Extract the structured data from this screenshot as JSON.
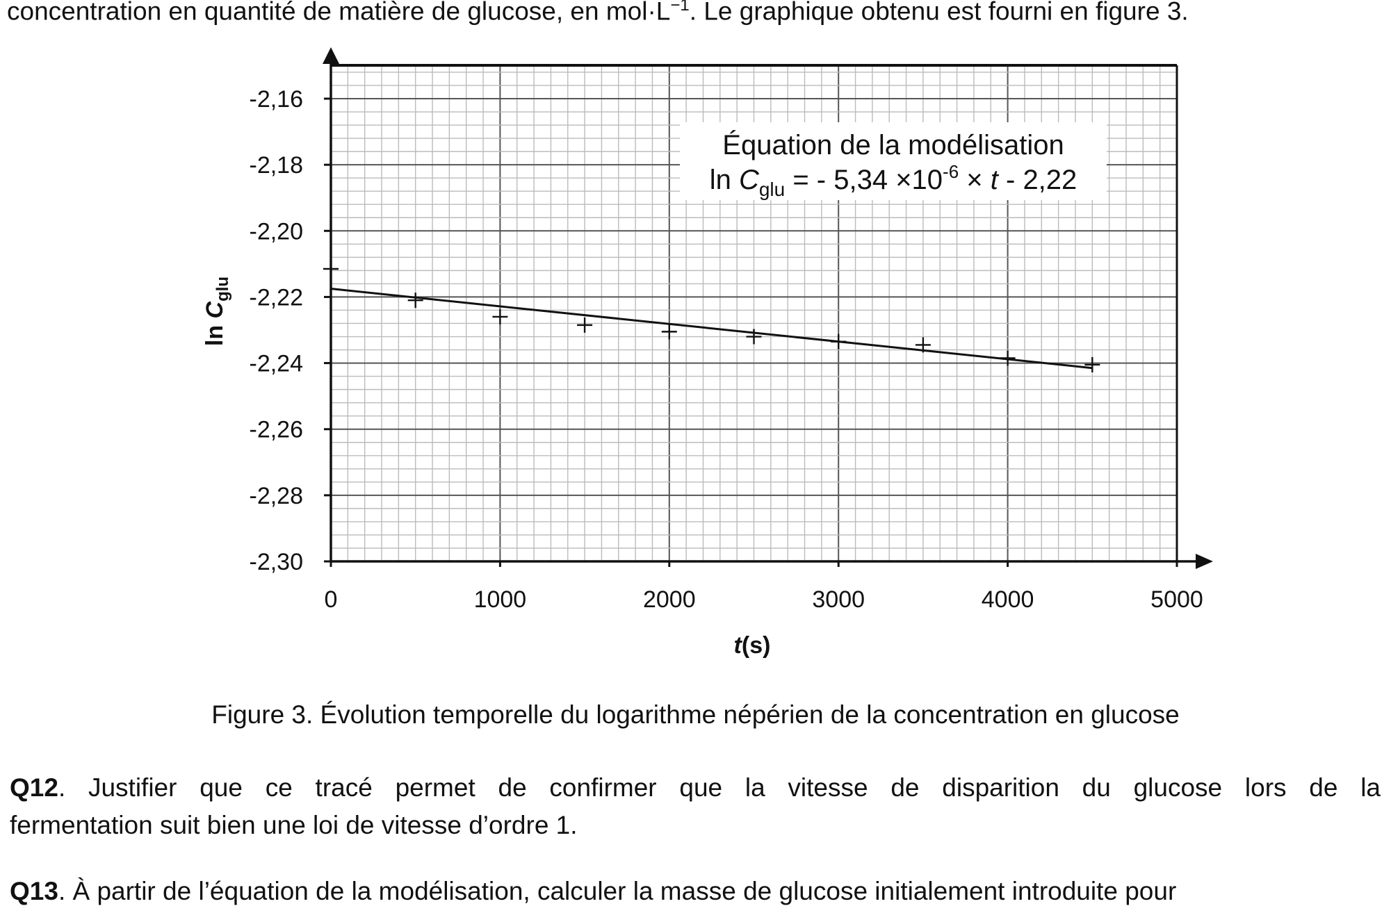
{
  "text": {
    "intro_prefix": "concentration en quantité de matière de glucose, en mol·L",
    "intro_sup": "−1",
    "intro_suffix": ". Le graphique obtenu est fourni en figure 3.",
    "caption": "Figure 3. Évolution temporelle du logarithme népérien de la concentration en glucose",
    "q12_label": "Q12",
    "q12_line1": ". Justifier que ce tracé permet de confirmer que la vitesse de disparition du glucose lors de la",
    "q12_line2": "fermentation suit bien une loi de vitesse d’ordre 1.",
    "q13_label": "Q13",
    "q13_text": ". À partir de l’équation de la modélisation, calculer la masse de glucose initialement introduite pour"
  },
  "chart_data": {
    "type": "scatter",
    "xlabel_italic": "t",
    "xlabel_rest": "(s)",
    "ylabel_prefix": "ln ",
    "ylabel_var": "C",
    "ylabel_sub": "glu",
    "x_ticks": [
      "0",
      "1000",
      "2000",
      "3000",
      "4000",
      "5000"
    ],
    "x_tick_values": [
      0,
      1000,
      2000,
      3000,
      4000,
      5000
    ],
    "y_ticks": [
      "-2,16",
      "-2,18",
      "-2,20",
      "-2,22",
      "-2,24",
      "-2,26",
      "-2,28",
      "-2,30"
    ],
    "y_tick_values": [
      -2.16,
      -2.18,
      -2.2,
      -2.22,
      -2.24,
      -2.26,
      -2.28,
      -2.3
    ],
    "xlim": [
      0,
      5000
    ],
    "ylim": [
      -2.3,
      -2.15
    ],
    "grid": true,
    "points": [
      {
        "x": 0,
        "y": -2.2115
      },
      {
        "x": 500,
        "y": -2.221
      },
      {
        "x": 1000,
        "y": -2.226
      },
      {
        "x": 1500,
        "y": -2.2285
      },
      {
        "x": 2000,
        "y": -2.2305
      },
      {
        "x": 2500,
        "y": -2.232
      },
      {
        "x": 3000,
        "y": -2.2335
      },
      {
        "x": 3500,
        "y": -2.2345
      },
      {
        "x": 4000,
        "y": -2.2385
      },
      {
        "x": 4500,
        "y": -2.2405
      }
    ],
    "fit_line": {
      "x": [
        0,
        4500
      ],
      "y": [
        -2.2175,
        -2.2415
      ]
    },
    "annotation": {
      "line1": "Équation de la modélisation",
      "line2_prefix": "ln ",
      "line2_var": "C",
      "line2_sub": "glu",
      "line2_mid": " = - 5,34 ×10",
      "line2_exp": "-6",
      "line2_mid2": " × ",
      "line2_t": "t",
      "line2_end": " - 2,22"
    }
  }
}
